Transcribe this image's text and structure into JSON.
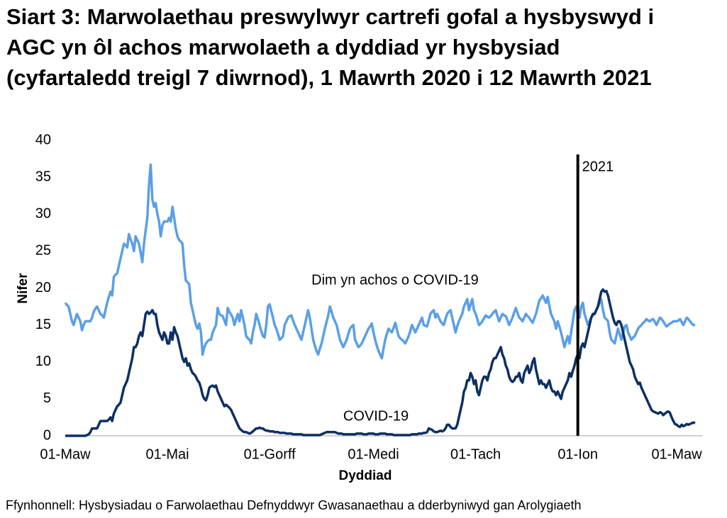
{
  "chart_data": {
    "type": "line",
    "title": "Siart 3: Marwolaethau preswylwyr cartrefi gofal a hysbyswyd i AGC yn ôl achos marwolaeth a dyddiad yr hysbysiad (cyfartaledd treigl 7 diwrnod), 1 Mawrth 2020 i 12 Mawrth 2021",
    "x_label": "Dyddiad",
    "y_label": "Nifer",
    "source": "Ffynhonnell: Hysbysiadau o Farwolaethau Defnyddwyr Gwasanaethau a dderbyniwyd gan Arolygiaeth",
    "ylim": [
      0,
      40
    ],
    "yticks": [
      0,
      5,
      10,
      15,
      20,
      25,
      30,
      35,
      40
    ],
    "grid": false,
    "vline": {
      "label": "2021",
      "category": "01-Ion"
    },
    "categories": [
      "01-Maw",
      null,
      null,
      null,
      null,
      null,
      null,
      null,
      null,
      null,
      null,
      null,
      null,
      null,
      null,
      null,
      null,
      null,
      null,
      null,
      null,
      null,
      null,
      null,
      null,
      null,
      null,
      null,
      null,
      null,
      null,
      null,
      null,
      null,
      null,
      null,
      null,
      null,
      null,
      null,
      null,
      null,
      null,
      null,
      null,
      null,
      null,
      null,
      null,
      null,
      null,
      null,
      null,
      null,
      null,
      null,
      null,
      null,
      null,
      null,
      null,
      "01-Mai",
      null,
      null,
      null,
      null,
      null,
      null,
      null,
      null,
      null,
      null,
      null,
      null,
      null,
      null,
      null,
      null,
      null,
      null,
      null,
      null,
      null,
      null,
      null,
      null,
      null,
      null,
      null,
      null,
      null,
      null,
      null,
      null,
      null,
      null,
      null,
      null,
      null,
      null,
      null,
      null,
      null,
      null,
      null,
      null,
      null,
      null,
      null,
      null,
      null,
      null,
      null,
      null,
      null,
      null,
      null,
      null,
      null,
      null,
      null,
      null,
      "01-Gorff",
      null,
      null,
      null,
      null,
      null,
      null,
      null,
      null,
      null,
      null,
      null,
      null,
      null,
      null,
      null,
      null,
      null,
      null,
      null,
      null,
      null,
      null,
      null,
      null,
      null,
      null,
      null,
      null,
      null,
      null,
      null,
      null,
      null,
      null,
      null,
      null,
      null,
      null,
      null,
      null,
      null,
      null,
      null,
      null,
      null,
      null,
      null,
      null,
      null,
      null,
      null,
      null,
      null,
      null,
      null,
      null,
      null,
      null,
      null,
      null,
      null,
      "01-Medi",
      null,
      null,
      null,
      null,
      null,
      null,
      null,
      null,
      null,
      null,
      null,
      null,
      null,
      null,
      null,
      null,
      null,
      null,
      null,
      null,
      null,
      null,
      null,
      null,
      null,
      null,
      null,
      null,
      null,
      null,
      null,
      null,
      null,
      null,
      null,
      null,
      null,
      null,
      null,
      null,
      null,
      null,
      null,
      null,
      null,
      null,
      null,
      null,
      null,
      null,
      null,
      null,
      null,
      null,
      null,
      null,
      null,
      null,
      null,
      null,
      "01-Tach",
      null,
      null,
      null,
      null,
      null,
      null,
      null,
      null,
      null,
      null,
      null,
      null,
      null,
      null,
      null,
      null,
      null,
      null,
      null,
      null,
      null,
      null,
      null,
      null,
      null,
      null,
      null,
      null,
      null,
      null,
      null,
      null,
      null,
      null,
      null,
      null,
      null,
      null,
      null,
      null,
      null,
      null,
      null,
      null,
      null,
      null,
      null,
      null,
      null,
      null,
      null,
      null,
      null,
      null,
      null,
      null,
      null,
      null,
      null,
      null,
      "01-Ion",
      null,
      null,
      null,
      null,
      null,
      null,
      null,
      null,
      null,
      null,
      null,
      null,
      null,
      null,
      null,
      null,
      null,
      null,
      null,
      null,
      null,
      null,
      null,
      null,
      null,
      null,
      null,
      null,
      null,
      null,
      null,
      null,
      null,
      null,
      null,
      null,
      null,
      null,
      null,
      null,
      null,
      null,
      null,
      null,
      null,
      null,
      null,
      null,
      null,
      null,
      null,
      null,
      null,
      null,
      null,
      null,
      null,
      null,
      "01-Maw",
      null,
      null,
      null,
      null,
      null,
      null,
      null,
      null,
      null,
      null,
      null
    ],
    "series": [
      {
        "name": "Dim yn achos o COVID-19",
        "color": "#5b9fe6",
        "values": [
          18,
          17.7,
          17.5,
          16.5,
          15.5,
          15,
          15.8,
          16.5,
          16,
          15.5,
          14.3,
          15,
          15.5,
          15.5,
          15.5,
          15.5,
          16,
          16.8,
          17.2,
          17.5,
          17,
          16.5,
          16.3,
          16,
          17,
          18,
          18.8,
          19.5,
          19,
          21.5,
          21.8,
          22,
          23,
          24,
          25,
          26,
          25.8,
          25.5,
          27.3,
          26.6,
          26,
          25,
          27,
          26.5,
          26,
          24.8,
          23.5,
          26,
          27.8,
          29.5,
          34,
          36.7,
          32,
          31,
          31.5,
          30,
          29,
          27,
          28.5,
          29,
          29,
          29,
          29.5,
          29,
          31,
          29.5,
          28,
          27,
          26.5,
          26.3,
          26,
          23,
          21,
          20.8,
          20.5,
          18,
          17,
          16,
          15,
          14.5,
          15.2,
          14,
          11,
          12,
          12.5,
          12.8,
          13,
          13,
          14,
          14.5,
          15,
          17.3,
          16.5,
          16.3,
          16.2,
          15.6,
          15,
          17.3,
          16.8,
          16.4,
          16,
          15,
          15.8,
          16.5,
          15.5,
          17,
          16,
          15,
          13.5,
          13.2,
          13,
          12.5,
          14,
          15,
          16.5,
          15.8,
          15,
          14.2,
          13.5,
          13.3,
          15,
          17.5,
          17.8,
          16.9,
          16,
          15,
          14.5,
          13.8,
          13,
          13.2,
          13.5,
          15,
          15.5,
          16,
          16.2,
          16.3,
          15.6,
          15,
          14.5,
          14,
          13.5,
          13,
          14,
          15,
          16,
          17,
          16,
          14.5,
          13,
          12.2,
          11.5,
          11,
          11.8,
          12.5,
          13.5,
          14.5,
          15.4,
          16.3,
          17.5,
          16.8,
          16,
          15.5,
          15,
          14,
          13,
          12.5,
          12,
          12.5,
          13,
          13.8,
          14.5,
          14.8,
          15,
          13,
          12.5,
          12,
          12.2,
          12.5,
          13,
          13.5,
          14,
          14.5,
          14.8,
          15.2,
          14,
          13,
          12.2,
          11.5,
          11,
          10.5,
          11.8,
          13,
          13.8,
          14.5,
          14.2,
          14,
          14.6,
          15.3,
          14.4,
          13.5,
          13.2,
          13,
          12.8,
          12.5,
          13,
          13.5,
          14.2,
          15,
          14.5,
          14,
          14.5,
          15,
          15.5,
          16,
          15,
          14.9,
          14.8,
          15.6,
          16.5,
          16.8,
          17,
          16,
          16.5,
          16,
          15.5,
          15.2,
          15,
          15.8,
          16.5,
          16.8,
          17,
          16,
          15,
          14,
          14.8,
          15.5,
          16,
          16.5,
          17.5,
          18,
          18.5,
          17,
          17.8,
          18.5,
          17,
          16.5,
          15.8,
          15,
          15.2,
          15.5,
          15.9,
          16.3,
          16.1,
          16,
          16.2,
          16.5,
          16.8,
          17,
          16.2,
          15.5,
          16,
          16.5,
          16.3,
          16.2,
          15.6,
          15,
          15.5,
          16,
          16.7,
          17.3,
          16.6,
          16,
          15.8,
          15.5,
          16,
          16.5,
          16.2,
          16,
          15.6,
          15.3,
          15.9,
          16.5,
          17.4,
          18.3,
          18.6,
          19,
          18.5,
          18,
          18.8,
          17.6,
          16.5,
          16,
          15.5,
          14.5,
          15.5,
          14.8,
          14,
          13,
          12,
          12.8,
          13.5,
          12.5,
          14,
          15.5,
          17,
          17.5,
          16.5,
          16,
          17.5,
          18,
          16.5,
          15.8,
          15,
          15.5,
          16,
          16.3,
          16.5,
          17,
          17.5,
          18,
          18.5,
          17,
          16,
          15.8,
          15.5,
          14,
          13,
          12.8,
          12.5,
          13.5,
          14.5,
          13.8,
          13,
          13.9,
          14.8,
          15,
          14,
          13.5,
          13,
          13.3,
          13.5,
          14,
          14.5,
          14.8,
          15,
          15.3,
          15.5,
          15.8,
          15.6,
          15.5,
          15.7,
          15.8,
          15.4,
          15,
          15.5,
          16,
          15.8,
          15.5,
          15.1,
          14.8,
          15,
          15.2,
          15.3,
          15.5,
          15.5,
          15.5,
          15.6,
          15.8,
          15.4,
          15,
          15.5,
          16,
          15.8,
          15.5,
          15.2,
          15,
          15
        ]
      },
      {
        "name": "COVID-19",
        "color": "#0d2f63",
        "values": [
          0,
          0,
          0,
          0,
          0,
          0,
          0,
          0,
          0,
          0,
          0,
          0,
          0,
          0.1,
          0.2,
          0.5,
          1,
          1,
          1,
          1,
          1.5,
          2,
          2,
          2,
          2,
          2,
          2.2,
          2.5,
          2,
          3,
          3.5,
          4,
          4.2,
          4.5,
          5.5,
          6.5,
          7,
          7.5,
          8.5,
          9.5,
          10.5,
          12,
          12,
          12.5,
          13.5,
          14,
          13.5,
          15,
          16.5,
          16.8,
          16.5,
          16.7,
          17,
          16.5,
          16.5,
          15,
          14,
          13.5,
          13,
          14,
          13.5,
          12.5,
          12.5,
          14,
          13,
          14.7,
          14,
          13.5,
          12.5,
          11.5,
          10.5,
          10,
          10.5,
          9.5,
          9.8,
          9,
          8.5,
          8.3,
          8,
          7.5,
          7.2,
          6.5,
          5.5,
          5,
          4.8,
          5.5,
          6.5,
          6.7,
          6.8,
          6.6,
          6.8,
          6,
          5.5,
          5,
          4.5,
          4,
          4.2,
          4,
          3.8,
          3.5,
          3,
          2.5,
          2,
          1.5,
          1,
          0.8,
          0.6,
          0.5,
          0.5,
          0.4,
          0.3,
          0.4,
          0.6,
          0.8,
          1,
          1,
          1.1,
          1,
          1,
          0.8,
          0.7,
          0.7,
          0.6,
          0.6,
          0.6,
          0.5,
          0.5,
          0.5,
          0.4,
          0.4,
          0.4,
          0.4,
          0.3,
          0.3,
          0.3,
          0.3,
          0.2,
          0.2,
          0.2,
          0.2,
          0.2,
          0.2,
          0.1,
          0.1,
          0.1,
          0.1,
          0.1,
          0.1,
          0.1,
          0.1,
          0.1,
          0.1,
          0.1,
          0.2,
          0.3,
          0.4,
          0.5,
          0.5,
          0.5,
          0.5,
          0.5,
          0.5,
          0.4,
          0.3,
          0.3,
          0.3,
          0.2,
          0.2,
          0.2,
          0.2,
          0.2,
          0.2,
          0.2,
          0.2,
          0.3,
          0.3,
          0.3,
          0.3,
          0.2,
          0.2,
          0.2,
          0.3,
          0.3,
          0.3,
          0.3,
          0.2,
          0.2,
          0.2,
          0.3,
          0.3,
          0.3,
          0.3,
          0.2,
          0.2,
          0.2,
          0.2,
          0.1,
          0.1,
          0.1,
          0.1,
          0.1,
          0.1,
          0.1,
          0.1,
          0.1,
          0.1,
          0.1,
          0.2,
          0.2,
          0.2,
          0.2,
          0.3,
          0.3,
          0.3,
          0.4,
          0.4,
          0.5,
          1,
          0.9,
          0.8,
          0.6,
          0.5,
          0.5,
          0.6,
          0.7,
          0.6,
          0.7,
          1,
          1.5,
          1.5,
          1.2,
          1,
          1,
          1,
          1.5,
          2.5,
          3.5,
          4.5,
          6,
          6.5,
          7.5,
          7.5,
          8.5,
          8,
          7,
          7.5,
          6,
          5.5,
          6.5,
          7.5,
          8,
          8,
          7.5,
          8.5,
          9,
          10,
          10.5,
          10.5,
          11,
          11.5,
          12,
          11,
          10.5,
          9.5,
          9,
          8,
          7.5,
          7.3,
          7.5,
          8,
          8,
          8.5,
          7.5,
          7.2,
          8.5,
          9,
          9.5,
          8.5,
          9,
          10,
          10.5,
          9,
          8,
          7,
          7.5,
          7,
          7,
          6.5,
          7,
          7.5,
          6.5,
          6,
          6,
          5.5,
          6,
          5.5,
          5,
          6,
          6.5,
          7,
          7.5,
          8.5,
          8,
          8.8,
          9.5,
          10.5,
          11,
          10.5,
          12,
          12.5,
          12,
          13,
          14,
          15,
          16,
          16.5,
          16.5,
          17,
          17.5,
          18.5,
          19.5,
          19.8,
          19.5,
          19.6,
          19,
          18,
          17,
          16,
          15.3,
          15,
          15.5,
          15.5,
          15,
          14,
          13,
          12,
          11,
          10,
          9.5,
          9,
          8,
          7.5,
          7,
          7.2,
          6.5,
          6,
          5.5,
          5,
          4.5,
          4,
          3.5,
          3.3,
          3.2,
          3.1,
          3,
          3.2,
          3.1,
          2.8,
          3,
          3.2,
          3.3,
          3.1,
          2.5,
          2,
          1.6,
          1.5,
          1.3,
          1.2,
          1.5,
          1.3,
          1.4,
          1.6,
          1.5,
          1.6,
          1.7,
          1.8,
          1.7
        ]
      }
    ]
  }
}
